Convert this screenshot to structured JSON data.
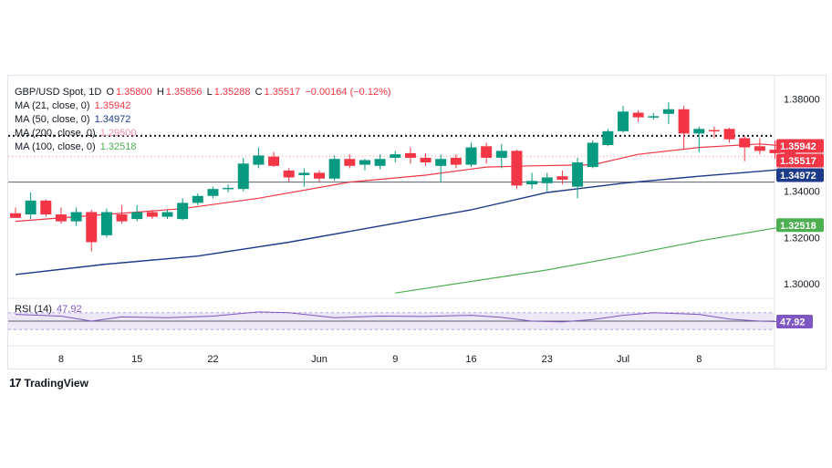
{
  "legend": {
    "symbol": "GBP/USD Spot, 1D",
    "o_label": "O",
    "o_val": "1.35800",
    "h_label": "H",
    "h_val": "1.35856",
    "l_label": "L",
    "l_val": "1.35288",
    "c_label": "C",
    "c_val": "1.35517",
    "change": "−0.00164 (−0.12%)",
    "ma21_label": "MA (21, close, 0)",
    "ma21_val": "1.35942",
    "ma50_label": "MA (50, close, 0)",
    "ma50_val": "1.34972",
    "ma200_label": "MA (200, close, 0)",
    "ma200_val": "1.29500",
    "ma100_label": "MA (100, close, 0)",
    "ma100_val": "1.32518",
    "rsi_label": "RSI (14)",
    "rsi_val": "47.92"
  },
  "logo": {
    "mark": "17",
    "text": "TradingView"
  },
  "colors": {
    "up": "#089981",
    "down": "#f23645",
    "ma21": "#f23645",
    "ma50": "#1e3a8a",
    "ma100": "#4caf50",
    "ma200": "#f48fb1",
    "rsi": "#7e57c2",
    "rsi_band": "#ede7f6"
  },
  "chart_data": [
    {
      "type": "candlestick",
      "y_ticks": [
        "1.38000",
        "1.36000",
        "1.34000",
        "1.32000",
        "1.30000"
      ],
      "ylim": [
        1.2945,
        1.39
      ],
      "x_ticks": [
        "8",
        "15",
        "22",
        "Jun",
        "9",
        "16",
        "23",
        "Jul",
        "8"
      ],
      "price_labels": [
        "1.35942",
        "1.35517",
        "1.34972",
        "1.32518"
      ],
      "candles": [
        {
          "o": 1.3305,
          "h": 1.333,
          "l": 1.329,
          "c": 1.3285
        },
        {
          "o": 1.33,
          "h": 1.3395,
          "l": 1.328,
          "c": 1.336
        },
        {
          "o": 1.336,
          "h": 1.3365,
          "l": 1.329,
          "c": 1.33
        },
        {
          "o": 1.33,
          "h": 1.333,
          "l": 1.326,
          "c": 1.327
        },
        {
          "o": 1.327,
          "h": 1.333,
          "l": 1.325,
          "c": 1.331
        },
        {
          "o": 1.331,
          "h": 1.332,
          "l": 1.314,
          "c": 1.318
        },
        {
          "o": 1.321,
          "h": 1.3325,
          "l": 1.32,
          "c": 1.331
        },
        {
          "o": 1.33,
          "h": 1.334,
          "l": 1.326,
          "c": 1.327
        },
        {
          "o": 1.328,
          "h": 1.334,
          "l": 1.327,
          "c": 1.331
        },
        {
          "o": 1.331,
          "h": 1.332,
          "l": 1.328,
          "c": 1.329
        },
        {
          "o": 1.329,
          "h": 1.332,
          "l": 1.328,
          "c": 1.331
        },
        {
          "o": 1.328,
          "h": 1.337,
          "l": 1.3275,
          "c": 1.335
        },
        {
          "o": 1.335,
          "h": 1.339,
          "l": 1.334,
          "c": 1.338
        },
        {
          "o": 1.338,
          "h": 1.342,
          "l": 1.337,
          "c": 1.341
        },
        {
          "o": 1.341,
          "h": 1.343,
          "l": 1.3395,
          "c": 1.3415
        },
        {
          "o": 1.341,
          "h": 1.3545,
          "l": 1.34,
          "c": 1.352
        },
        {
          "o": 1.3515,
          "h": 1.359,
          "l": 1.35,
          "c": 1.3555
        },
        {
          "o": 1.355,
          "h": 1.357,
          "l": 1.3505,
          "c": 1.351
        },
        {
          "o": 1.349,
          "h": 1.35,
          "l": 1.344,
          "c": 1.346
        },
        {
          "o": 1.347,
          "h": 1.35,
          "l": 1.342,
          "c": 1.348
        },
        {
          "o": 1.348,
          "h": 1.349,
          "l": 1.344,
          "c": 1.3455
        },
        {
          "o": 1.3455,
          "h": 1.3555,
          "l": 1.3445,
          "c": 1.354
        },
        {
          "o": 1.354,
          "h": 1.356,
          "l": 1.35,
          "c": 1.351
        },
        {
          "o": 1.3515,
          "h": 1.354,
          "l": 1.349,
          "c": 1.3535
        },
        {
          "o": 1.351,
          "h": 1.356,
          "l": 1.3495,
          "c": 1.354
        },
        {
          "o": 1.3545,
          "h": 1.3575,
          "l": 1.3525,
          "c": 1.356
        },
        {
          "o": 1.3565,
          "h": 1.359,
          "l": 1.352,
          "c": 1.3545
        },
        {
          "o": 1.3545,
          "h": 1.3565,
          "l": 1.351,
          "c": 1.3525
        },
        {
          "o": 1.351,
          "h": 1.356,
          "l": 1.344,
          "c": 1.354
        },
        {
          "o": 1.3545,
          "h": 1.356,
          "l": 1.35,
          "c": 1.3515
        },
        {
          "o": 1.3515,
          "h": 1.361,
          "l": 1.3505,
          "c": 1.359
        },
        {
          "o": 1.3595,
          "h": 1.361,
          "l": 1.352,
          "c": 1.3545
        },
        {
          "o": 1.3545,
          "h": 1.3605,
          "l": 1.35,
          "c": 1.3575
        },
        {
          "o": 1.3575,
          "h": 1.358,
          "l": 1.341,
          "c": 1.3425
        },
        {
          "o": 1.343,
          "h": 1.348,
          "l": 1.341,
          "c": 1.3445
        },
        {
          "o": 1.3435,
          "h": 1.348,
          "l": 1.34,
          "c": 1.346
        },
        {
          "o": 1.3465,
          "h": 1.349,
          "l": 1.343,
          "c": 1.345
        },
        {
          "o": 1.342,
          "h": 1.3545,
          "l": 1.337,
          "c": 1.3525
        },
        {
          "o": 1.3505,
          "h": 1.362,
          "l": 1.35,
          "c": 1.361
        },
        {
          "o": 1.36,
          "h": 1.367,
          "l": 1.3595,
          "c": 1.366
        },
        {
          "o": 1.366,
          "h": 1.377,
          "l": 1.3655,
          "c": 1.3745
        },
        {
          "o": 1.374,
          "h": 1.375,
          "l": 1.37,
          "c": 1.372
        },
        {
          "o": 1.372,
          "h": 1.374,
          "l": 1.371,
          "c": 1.3725
        },
        {
          "o": 1.3735,
          "h": 1.3785,
          "l": 1.369,
          "c": 1.3755
        },
        {
          "o": 1.3755,
          "h": 1.377,
          "l": 1.358,
          "c": 1.365
        },
        {
          "o": 1.365,
          "h": 1.368,
          "l": 1.357,
          "c": 1.367
        },
        {
          "o": 1.3665,
          "h": 1.368,
          "l": 1.363,
          "c": 1.366
        },
        {
          "o": 1.367,
          "h": 1.3675,
          "l": 1.361,
          "c": 1.3625
        },
        {
          "o": 1.363,
          "h": 1.364,
          "l": 1.353,
          "c": 1.359
        },
        {
          "o": 1.3595,
          "h": 1.363,
          "l": 1.356,
          "c": 1.3575
        },
        {
          "o": 1.358,
          "h": 1.362,
          "l": 1.354,
          "c": 1.3565
        },
        {
          "o": 1.358,
          "h": 1.3586,
          "l": 1.3529,
          "c": 1.3552
        }
      ],
      "ma21": [
        [
          0,
          1.327
        ],
        [
          6,
          1.33
        ],
        [
          11,
          1.3325
        ],
        [
          16,
          1.337
        ],
        [
          22,
          1.344
        ],
        [
          27,
          1.347
        ],
        [
          31,
          1.3505
        ],
        [
          34,
          1.351
        ],
        [
          38,
          1.3515
        ],
        [
          41,
          1.356
        ],
        [
          45,
          1.359
        ],
        [
          49,
          1.3605
        ],
        [
          51,
          1.3594
        ]
      ],
      "ma50": [
        [
          0,
          1.304
        ],
        [
          6,
          1.3085
        ],
        [
          12,
          1.312
        ],
        [
          18,
          1.318
        ],
        [
          24,
          1.325
        ],
        [
          30,
          1.332
        ],
        [
          35,
          1.3395
        ],
        [
          40,
          1.3435
        ],
        [
          45,
          1.3465
        ],
        [
          51,
          1.3497
        ]
      ],
      "ma100": [
        [
          25,
          1.296
        ],
        [
          30,
          1.301
        ],
        [
          35,
          1.306
        ],
        [
          40,
          1.312
        ],
        [
          45,
          1.3185
        ],
        [
          51,
          1.3252
        ]
      ],
      "ma200_flat": 1.295,
      "hline": 1.344,
      "dotted_line": 1.364,
      "rsi": [
        [
          0,
          66
        ],
        [
          3,
          62
        ],
        [
          5,
          50
        ],
        [
          7,
          60
        ],
        [
          10,
          58
        ],
        [
          13,
          62
        ],
        [
          16,
          72
        ],
        [
          18,
          70
        ],
        [
          21,
          58
        ],
        [
          24,
          62
        ],
        [
          27,
          61
        ],
        [
          30,
          64
        ],
        [
          32,
          59
        ],
        [
          34,
          50
        ],
        [
          36,
          48
        ],
        [
          38,
          54
        ],
        [
          40,
          64
        ],
        [
          42,
          70
        ],
        [
          45,
          66
        ],
        [
          47,
          55
        ],
        [
          49,
          50
        ],
        [
          51,
          47.92
        ]
      ],
      "rsi_range": [
        0,
        100
      ],
      "rsi_band": [
        30,
        70
      ]
    }
  ]
}
